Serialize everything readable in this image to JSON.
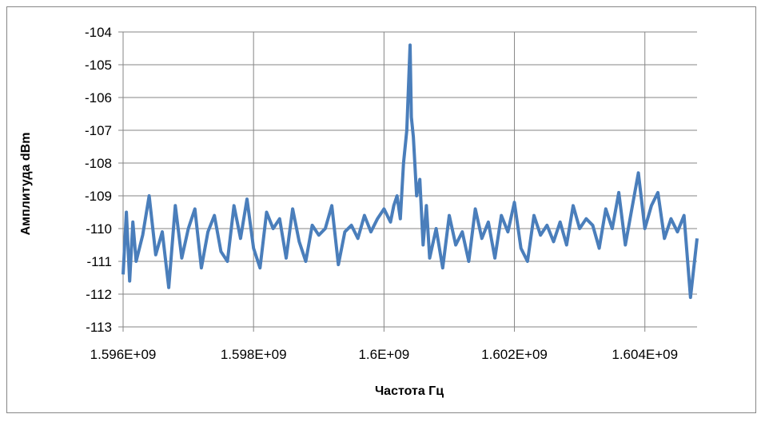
{
  "chart_data": {
    "type": "line",
    "title": "",
    "xlabel": "Частота Гц",
    "ylabel": "Амплитуда dBm",
    "xlim": [
      1596000000,
      1604800000
    ],
    "ylim": [
      -113,
      -104
    ],
    "x_ticks": [
      1596000000,
      1598000000,
      1600000000,
      1602000000,
      1604000000
    ],
    "x_tick_labels": [
      "1.596E+09",
      "1.598E+09",
      "1.6E+09",
      "1.602E+09",
      "1.604E+09"
    ],
    "y_ticks": [
      -104,
      -105,
      -106,
      -107,
      -108,
      -109,
      -110,
      -111,
      -112,
      -113
    ],
    "y_tick_labels": [
      "-104",
      "-105",
      "-106",
      "-107",
      "-108",
      "-109",
      "-110",
      "-111",
      "-112",
      "-113"
    ],
    "grid": true,
    "legend": "none",
    "series": [
      {
        "color": "#4a7ebb",
        "x": [
          1596000000,
          1596050000,
          1596100000,
          1596150000,
          1596200000,
          1596300000,
          1596400000,
          1596500000,
          1596600000,
          1596700000,
          1596800000,
          1596900000,
          1597000000,
          1597100000,
          1597200000,
          1597300000,
          1597400000,
          1597500000,
          1597600000,
          1597700000,
          1597800000,
          1597900000,
          1598000000,
          1598100000,
          1598200000,
          1598300000,
          1598400000,
          1598500000,
          1598600000,
          1598700000,
          1598800000,
          1598900000,
          1599000000,
          1599100000,
          1599200000,
          1599300000,
          1599400000,
          1599500000,
          1599600000,
          1599700000,
          1599800000,
          1599900000,
          1600000000,
          1600100000,
          1600150000,
          1600200000,
          1600250000,
          1600300000,
          1600350000,
          1600400000,
          1600420000,
          1600450000,
          1600500000,
          1600550000,
          1600600000,
          1600650000,
          1600700000,
          1600800000,
          1600900000,
          1601000000,
          1601100000,
          1601200000,
          1601300000,
          1601400000,
          1601500000,
          1601600000,
          1601700000,
          1601800000,
          1601900000,
          1602000000,
          1602100000,
          1602200000,
          1602300000,
          1602400000,
          1602500000,
          1602600000,
          1602700000,
          1602800000,
          1602900000,
          1603000000,
          1603100000,
          1603200000,
          1603300000,
          1603400000,
          1603500000,
          1603600000,
          1603700000,
          1603800000,
          1603900000,
          1604000000,
          1604100000,
          1604200000,
          1604300000,
          1604400000,
          1604500000,
          1604600000,
          1604700000,
          1604800000
        ],
        "values": [
          -111.4,
          -109.5,
          -111.6,
          -109.8,
          -111.0,
          -110.2,
          -109.0,
          -110.8,
          -110.1,
          -111.8,
          -109.3,
          -110.9,
          -110.0,
          -109.4,
          -111.2,
          -110.1,
          -109.6,
          -110.7,
          -111.0,
          -109.3,
          -110.3,
          -109.1,
          -110.6,
          -111.2,
          -109.5,
          -110.0,
          -109.7,
          -110.9,
          -109.4,
          -110.4,
          -111.0,
          -109.9,
          -110.2,
          -110.0,
          -109.3,
          -111.1,
          -110.1,
          -109.9,
          -110.3,
          -109.6,
          -110.1,
          -109.7,
          -109.4,
          -109.8,
          -109.3,
          -109.0,
          -109.7,
          -108.0,
          -107.0,
          -104.4,
          -106.6,
          -107.2,
          -109.0,
          -108.5,
          -110.5,
          -109.3,
          -110.9,
          -110.0,
          -111.2,
          -109.6,
          -110.5,
          -110.1,
          -111.0,
          -109.4,
          -110.3,
          -109.8,
          -110.9,
          -109.6,
          -110.1,
          -109.2,
          -110.6,
          -111.0,
          -109.6,
          -110.2,
          -109.9,
          -110.4,
          -109.8,
          -110.5,
          -109.3,
          -110.0,
          -109.7,
          -109.9,
          -110.6,
          -109.4,
          -110.0,
          -108.9,
          -110.5,
          -109.4,
          -108.3,
          -110.0,
          -109.3,
          -108.9,
          -110.3,
          -109.7,
          -110.1,
          -109.6,
          -112.1,
          -110.3
        ]
      }
    ]
  }
}
